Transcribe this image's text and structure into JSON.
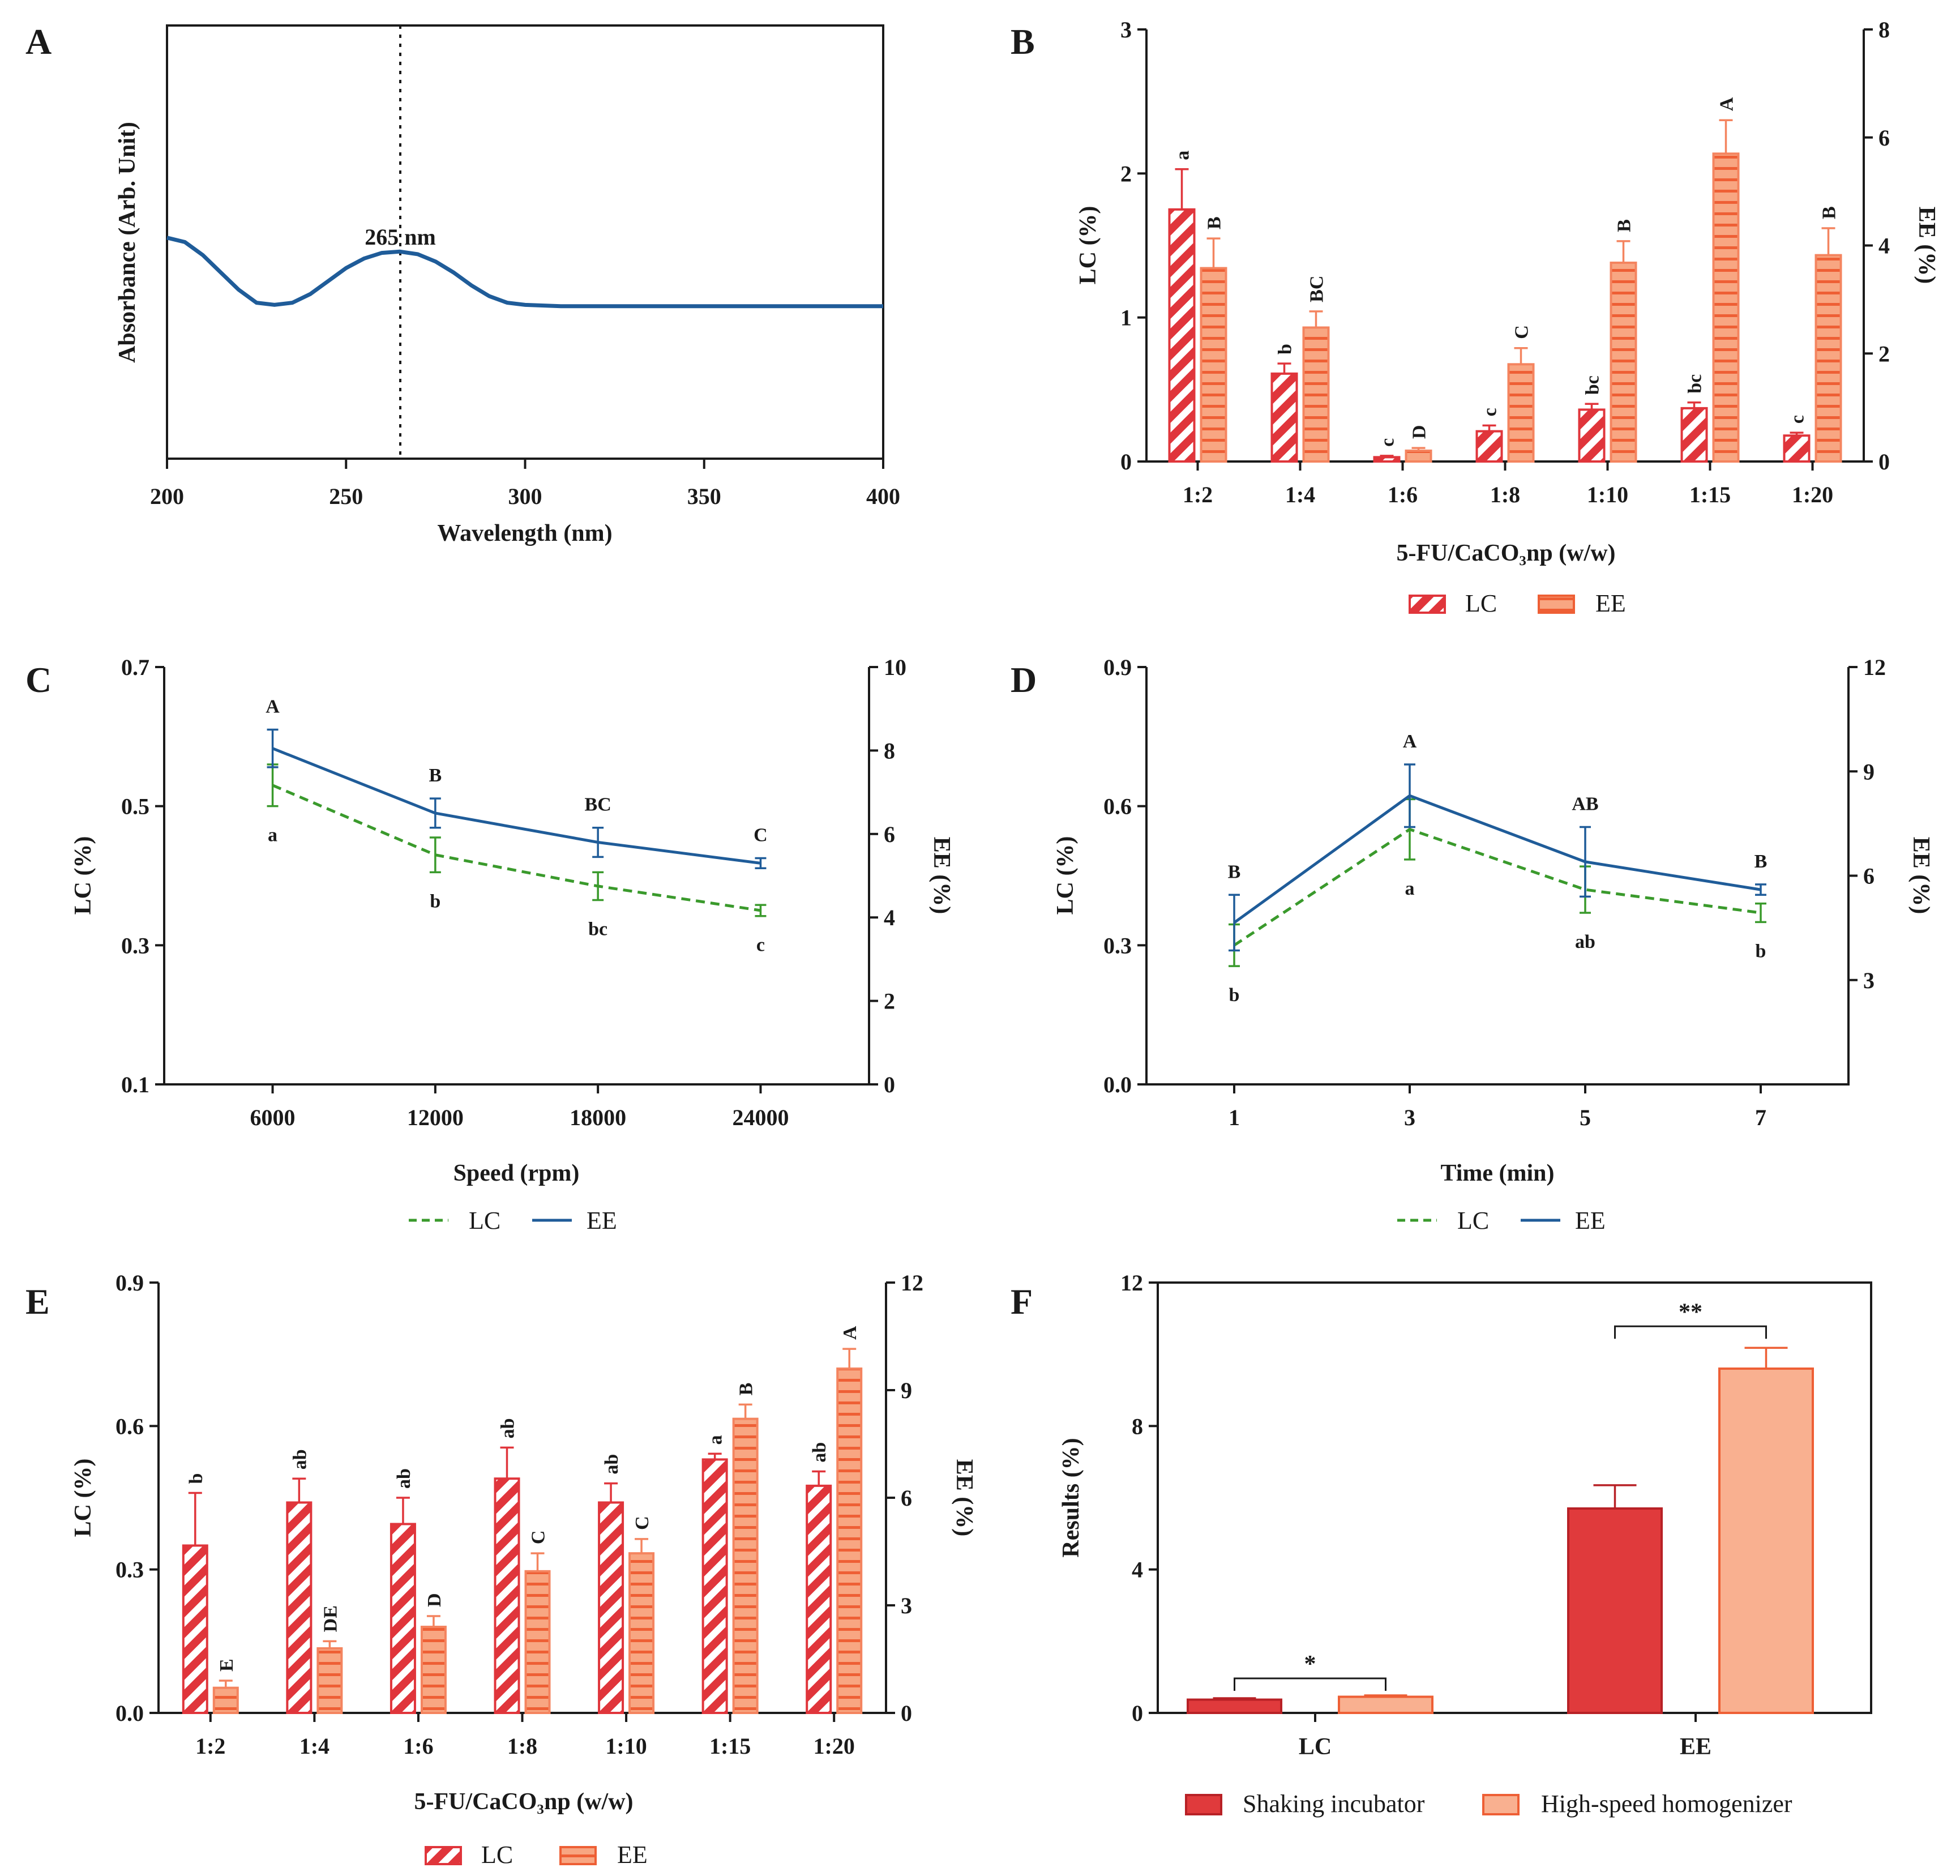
{
  "colors": {
    "lc_bar": "#e0353b",
    "ee_bar": "#f4845f",
    "ee_bar_fill": "#f8a682",
    "line_blue": "#1f5c99",
    "line_green": "#3a9a2c",
    "f_dark": "#e03a3c",
    "f_light": "#f9b090"
  },
  "panelA": {
    "label": "A",
    "xlabel": "Wavelength (nm)",
    "ylabel": "Absorbance (Arb. Unit)",
    "peak_label": "265 nm",
    "chart_data": {
      "type": "line",
      "title": "",
      "xlabel": "Wavelength (nm)",
      "ylabel": "Absorbance (Arb. Unit)",
      "xlim": [
        200,
        400
      ],
      "ylim": [
        0,
        1
      ],
      "xticks": [
        "200",
        "250",
        "300",
        "350",
        "400"
      ],
      "peak_x": 265,
      "x": [
        200,
        205,
        210,
        215,
        220,
        225,
        230,
        235,
        240,
        245,
        250,
        255,
        260,
        265,
        270,
        275,
        280,
        285,
        290,
        295,
        300,
        310,
        320,
        340,
        360,
        380,
        400
      ],
      "y": [
        0.51,
        0.5,
        0.47,
        0.43,
        0.39,
        0.36,
        0.355,
        0.36,
        0.38,
        0.41,
        0.44,
        0.462,
        0.475,
        0.478,
        0.472,
        0.455,
        0.43,
        0.4,
        0.375,
        0.36,
        0.355,
        0.352,
        0.352,
        0.352,
        0.352,
        0.352,
        0.352
      ]
    }
  },
  "panelB": {
    "label": "B",
    "xlabel": "5-FU/CaCO₃np (w/w)",
    "ylabel_left": "LC (%)",
    "ylabel_right": "EE (%)",
    "legend": [
      "LC",
      "EE"
    ],
    "chart_data": {
      "type": "bar",
      "categories": [
        "1:2",
        "1:4",
        "1:6",
        "1:8",
        "1:10",
        "1:15",
        "1:20"
      ],
      "yticks_left": [
        "0",
        "1",
        "2",
        "3"
      ],
      "yticks_right": [
        "0",
        "2",
        "4",
        "6",
        "8"
      ],
      "ylim_left": [
        0,
        3
      ],
      "ylim_right": [
        0,
        8
      ],
      "series": [
        {
          "name": "LC",
          "axis": "left",
          "values": [
            1.75,
            0.61,
            0.03,
            0.21,
            0.36,
            0.37,
            0.18
          ],
          "errors": [
            0.28,
            0.07,
            0.01,
            0.04,
            0.04,
            0.04,
            0.02
          ],
          "letters": [
            "a",
            "b",
            "c",
            "c",
            "bc",
            "bc",
            "c"
          ]
        },
        {
          "name": "EE",
          "axis": "right",
          "values": [
            3.58,
            2.48,
            0.2,
            1.8,
            3.68,
            5.7,
            3.82
          ],
          "errors": [
            0.55,
            0.3,
            0.05,
            0.3,
            0.4,
            0.62,
            0.5
          ],
          "letters": [
            "B",
            "BC",
            "D",
            "C",
            "B",
            "A",
            "B"
          ]
        }
      ]
    }
  },
  "panelC": {
    "label": "C",
    "xlabel": "Speed (rpm)",
    "ylabel_left": "LC (%)",
    "ylabel_right": "EE (%)",
    "legend": [
      "LC",
      "EE"
    ],
    "chart_data": {
      "type": "line",
      "categories": [
        "6000",
        "12000",
        "18000",
        "24000"
      ],
      "x": [
        6000,
        12000,
        18000,
        24000
      ],
      "xlim": [
        2000,
        28000
      ],
      "yticks_left": [
        "0.1",
        "0.3",
        "0.5",
        "0.7"
      ],
      "yticks_right": [
        "0",
        "2",
        "4",
        "6",
        "8",
        "10"
      ],
      "ylim_left": [
        0.1,
        0.7
      ],
      "ylim_right": [
        0,
        10
      ],
      "series": [
        {
          "name": "LC",
          "axis": "left",
          "values": [
            0.53,
            0.43,
            0.385,
            0.35
          ],
          "errors": [
            0.03,
            0.025,
            0.02,
            0.008
          ],
          "letters": [
            "a",
            "b",
            "bc",
            "c"
          ]
        },
        {
          "name": "EE",
          "axis": "right",
          "values": [
            8.05,
            6.5,
            5.8,
            5.3
          ],
          "errors": [
            0.45,
            0.35,
            0.35,
            0.12
          ],
          "letters": [
            "A",
            "B",
            "BC",
            "C"
          ]
        }
      ]
    }
  },
  "panelD": {
    "label": "D",
    "xlabel": "Time (min)",
    "ylabel_left": "LC (%)",
    "ylabel_right": "EE (%)",
    "legend": [
      "LC",
      "EE"
    ],
    "chart_data": {
      "type": "line",
      "categories": [
        "1",
        "3",
        "5",
        "7"
      ],
      "x": [
        1,
        3,
        5,
        7
      ],
      "xlim": [
        0,
        8
      ],
      "yticks_left": [
        "0.0",
        "0.3",
        "0.6",
        "0.9"
      ],
      "yticks_right": [
        "3",
        "6",
        "9",
        "12"
      ],
      "ylim_left": [
        0,
        0.9
      ],
      "ylim_right": [
        0,
        12
      ],
      "series": [
        {
          "name": "LC",
          "axis": "left",
          "values": [
            0.3,
            0.55,
            0.42,
            0.37
          ],
          "errors": [
            0.045,
            0.065,
            0.05,
            0.02
          ],
          "letters": [
            "b",
            "a",
            "ab",
            "b"
          ]
        },
        {
          "name": "EE",
          "axis": "right",
          "values": [
            4.65,
            8.3,
            6.4,
            5.6
          ],
          "errors": [
            0.8,
            0.9,
            1.0,
            0.15
          ],
          "letters": [
            "B",
            "A",
            "AB",
            "B"
          ]
        }
      ]
    }
  },
  "panelE": {
    "label": "E",
    "xlabel": "5-FU/CaCO₃np (w/w)",
    "ylabel_left": "LC (%)",
    "ylabel_right": "EE (%)",
    "legend": [
      "LC",
      "EE"
    ],
    "chart_data": {
      "type": "bar",
      "categories": [
        "1:2",
        "1:4",
        "1:6",
        "1:8",
        "1:10",
        "1:15",
        "1:20"
      ],
      "yticks_left": [
        "0.0",
        "0.3",
        "0.6",
        "0.9"
      ],
      "yticks_right": [
        "0",
        "3",
        "6",
        "9",
        "12"
      ],
      "ylim_left": [
        0,
        0.9
      ],
      "ylim_right": [
        0,
        12
      ],
      "series": [
        {
          "name": "LC",
          "axis": "left",
          "values": [
            0.35,
            0.44,
            0.395,
            0.49,
            0.44,
            0.53,
            0.475
          ],
          "errors": [
            0.11,
            0.05,
            0.055,
            0.065,
            0.04,
            0.012,
            0.03
          ],
          "letters": [
            "b",
            "ab",
            "ab",
            "ab",
            "ab",
            "a",
            "ab"
          ]
        },
        {
          "name": "EE",
          "axis": "right",
          "values": [
            0.7,
            1.8,
            2.4,
            3.95,
            4.45,
            8.2,
            9.6
          ],
          "errors": [
            0.2,
            0.2,
            0.3,
            0.5,
            0.4,
            0.4,
            0.55
          ],
          "letters": [
            "E",
            "DE",
            "D",
            "C",
            "C",
            "B",
            "A"
          ]
        }
      ]
    }
  },
  "panelF": {
    "label": "F",
    "ylabel": "Results (%)",
    "legend": [
      "Shaking incubator",
      "High-speed homogenizer"
    ],
    "sig_LC": "*",
    "sig_EE": "**",
    "chart_data": {
      "type": "bar",
      "categories": [
        "LC",
        "EE"
      ],
      "yticks": [
        "0",
        "4",
        "8",
        "12"
      ],
      "ylim": [
        0,
        12
      ],
      "series": [
        {
          "name": "Shaking incubator",
          "values": [
            0.37,
            5.7
          ],
          "errors": [
            0.04,
            0.65
          ]
        },
        {
          "name": "High-speed homogenizer",
          "values": [
            0.45,
            9.6
          ],
          "errors": [
            0.04,
            0.58
          ]
        }
      ]
    }
  }
}
